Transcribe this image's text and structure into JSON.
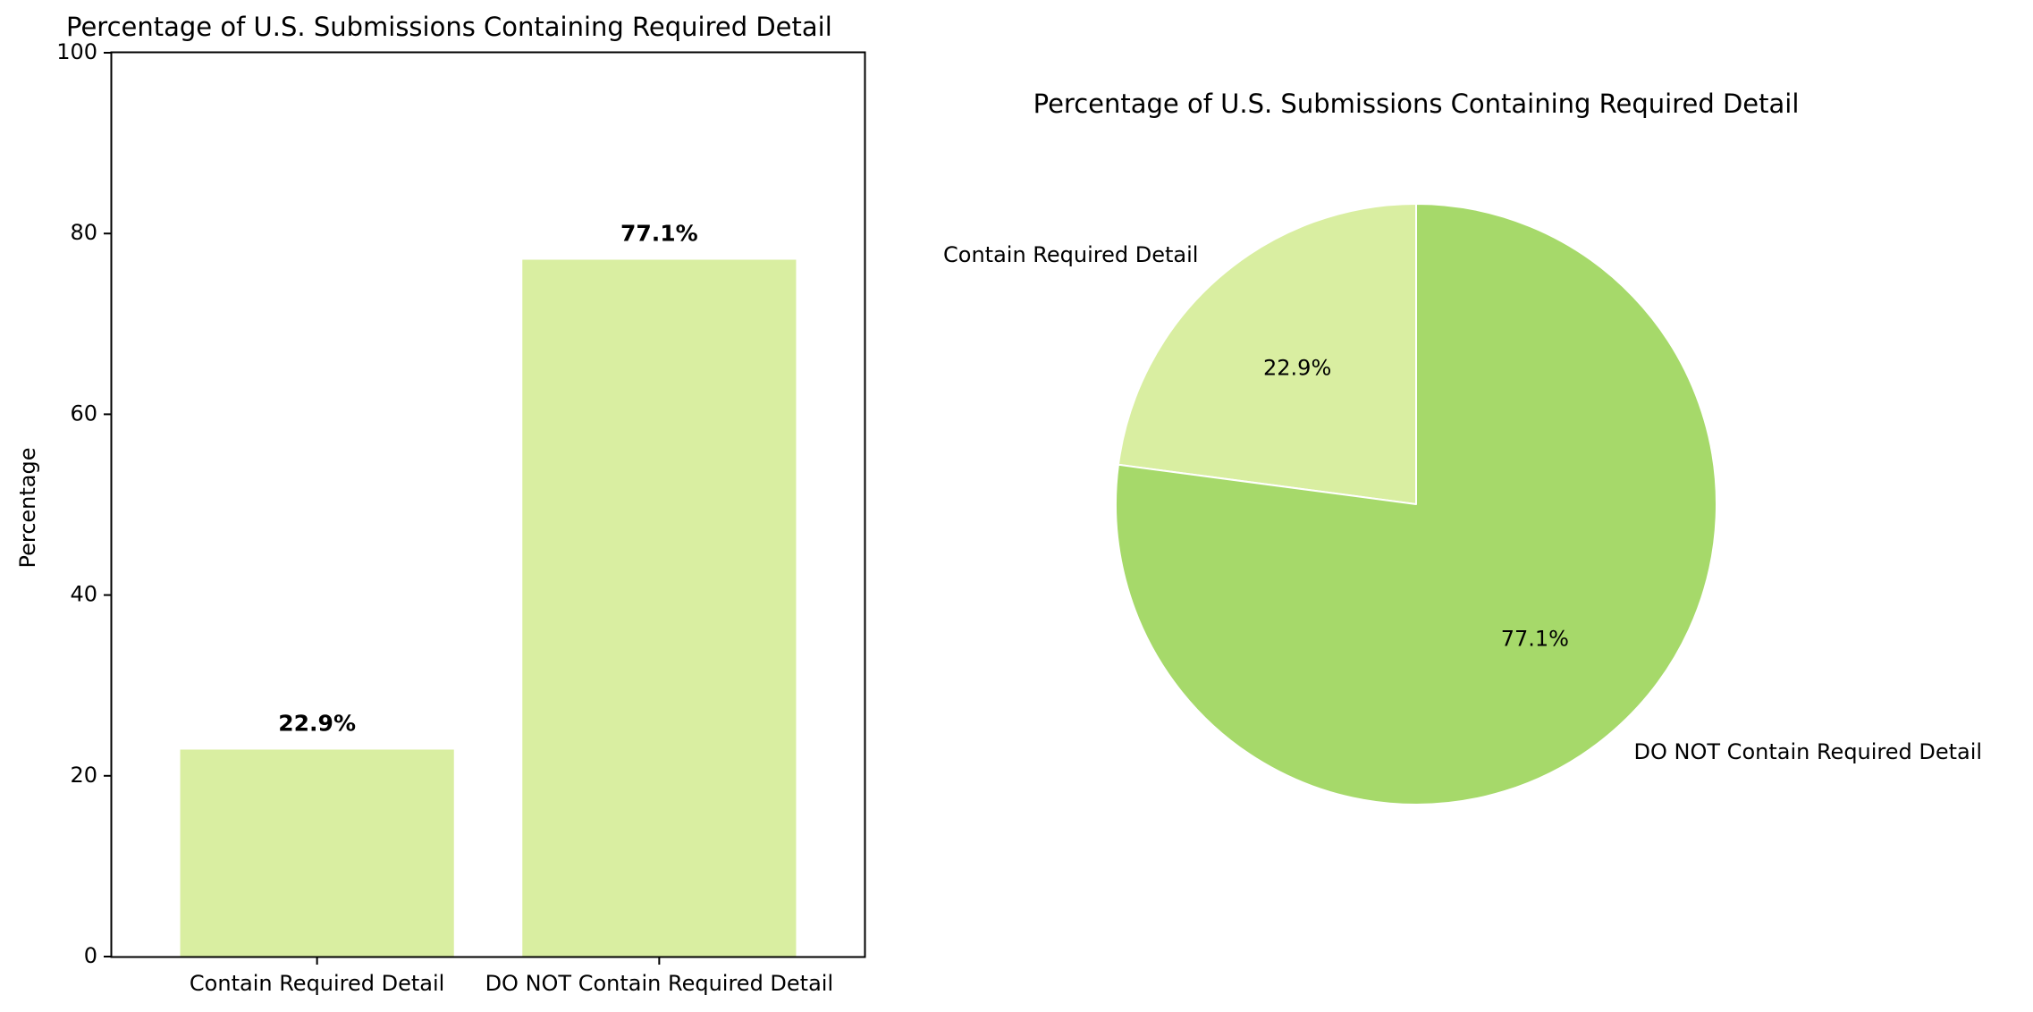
{
  "chart_data": [
    {
      "type": "bar",
      "title": "Percentage of U.S. Submissions Containing Required Detail",
      "xlabel": "",
      "ylabel": "Percentage",
      "ylim": [
        0,
        100
      ],
      "yticks": [
        "0",
        "20",
        "40",
        "60",
        "80",
        "100"
      ],
      "categories": [
        "Contain Required Detail",
        "DO NOT Contain Required Detail"
      ],
      "values": [
        22.9,
        77.1
      ],
      "data_labels": [
        "22.9%",
        "77.1%"
      ],
      "bar_color": "#d9eea1",
      "grid": false,
      "legend": "none"
    },
    {
      "type": "pie",
      "title": "Percentage of U.S. Submissions Containing Required Detail",
      "labels": [
        "Contain Required Detail",
        "DO NOT Contain Required Detail"
      ],
      "values": [
        22.9,
        77.1
      ],
      "pct_labels": [
        "22.9%",
        "77.1%"
      ],
      "colors": [
        "#d9eea1",
        "#a6d96a"
      ],
      "start": "top, counter-clockwise",
      "legend": "none"
    }
  ]
}
